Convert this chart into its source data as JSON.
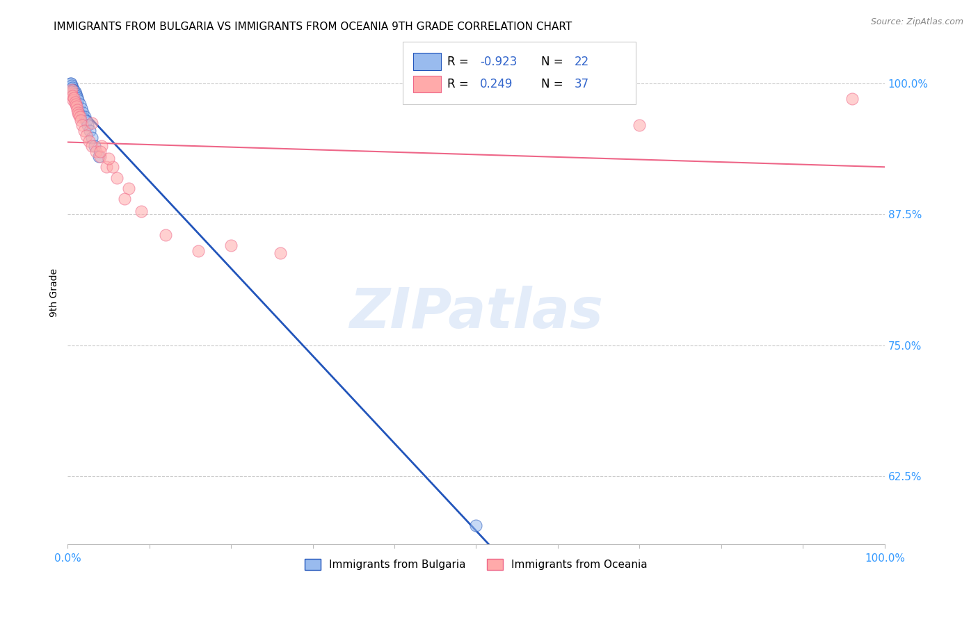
{
  "title": "IMMIGRANTS FROM BULGARIA VS IMMIGRANTS FROM OCEANIA 9TH GRADE CORRELATION CHART",
  "source": "Source: ZipAtlas.com",
  "ylabel": "9th Grade",
  "xlim": [
    0.0,
    1.0
  ],
  "ylim": [
    0.56,
    1.04
  ],
  "yticks": [
    0.625,
    0.75,
    0.875,
    1.0
  ],
  "ytick_labels": [
    "62.5%",
    "75.0%",
    "87.5%",
    "100.0%"
  ],
  "legend_R_bulgaria": "-0.923",
  "legend_N_bulgaria": "22",
  "legend_R_oceania": "0.249",
  "legend_N_oceania": "37",
  "bulgaria_color": "#99BBEE",
  "oceania_color": "#FFAAAA",
  "bulgaria_line_color": "#2255BB",
  "oceania_line_color": "#EE6688",
  "watermark_text": "ZIPatlas",
  "bulgaria_x": [
    0.003,
    0.004,
    0.005,
    0.006,
    0.007,
    0.008,
    0.009,
    0.01,
    0.011,
    0.012,
    0.013,
    0.015,
    0.017,
    0.019,
    0.021,
    0.023,
    0.025,
    0.027,
    0.03,
    0.033,
    0.038,
    0.5
  ],
  "bulgaria_y": [
    1.0,
    1.0,
    0.998,
    0.996,
    0.994,
    0.993,
    0.992,
    0.99,
    0.988,
    0.986,
    0.984,
    0.98,
    0.976,
    0.972,
    0.968,
    0.964,
    0.96,
    0.955,
    0.948,
    0.94,
    0.93,
    0.578
  ],
  "oceania_x": [
    0.003,
    0.004,
    0.005,
    0.006,
    0.007,
    0.008,
    0.009,
    0.01,
    0.011,
    0.012,
    0.013,
    0.014,
    0.015,
    0.016,
    0.018,
    0.02,
    0.023,
    0.026,
    0.03,
    0.035,
    0.04,
    0.048,
    0.06,
    0.075,
    0.03,
    0.042,
    0.055,
    0.09,
    0.12,
    0.16,
    0.05,
    0.04,
    0.07,
    0.2,
    0.26,
    0.96,
    0.7
  ],
  "oceania_y": [
    0.99,
    0.992,
    0.994,
    0.988,
    0.984,
    0.986,
    0.982,
    0.98,
    0.978,
    0.975,
    0.972,
    0.97,
    0.968,
    0.965,
    0.96,
    0.955,
    0.95,
    0.945,
    0.94,
    0.935,
    0.93,
    0.92,
    0.91,
    0.9,
    0.962,
    0.94,
    0.92,
    0.878,
    0.855,
    0.84,
    0.928,
    0.935,
    0.89,
    0.845,
    0.838,
    0.985,
    0.96
  ]
}
